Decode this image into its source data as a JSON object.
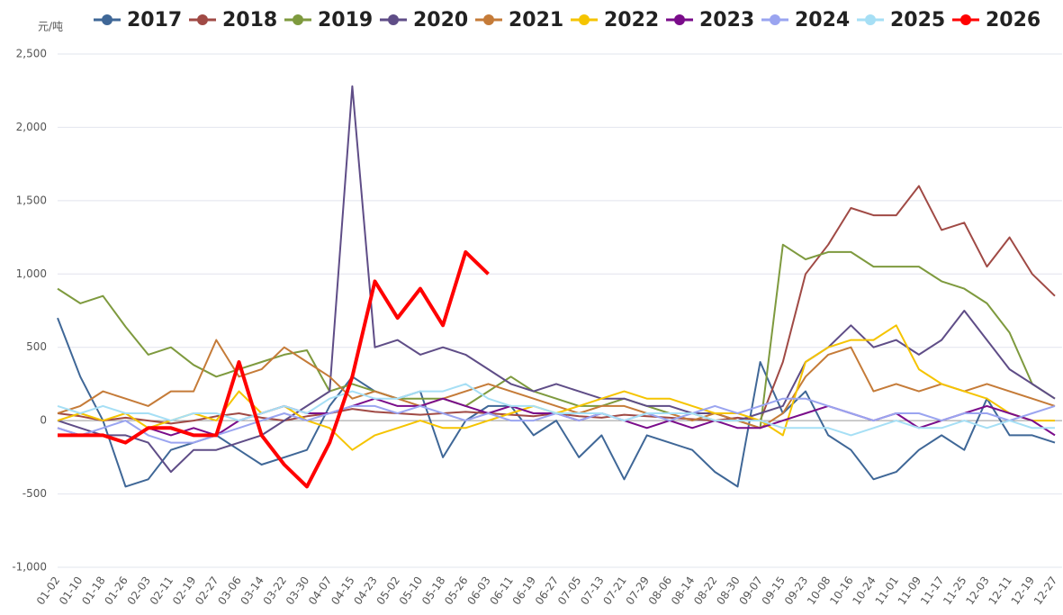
{
  "chart_data": {
    "type": "line",
    "y_unit": "元/吨",
    "categories": [
      "01-02",
      "01-10",
      "01-18",
      "01-26",
      "02-03",
      "02-11",
      "02-19",
      "02-27",
      "03-06",
      "03-14",
      "03-22",
      "03-30",
      "04-07",
      "04-15",
      "04-23",
      "05-02",
      "05-10",
      "05-18",
      "05-26",
      "06-03",
      "06-11",
      "06-19",
      "06-27",
      "07-05",
      "07-13",
      "07-21",
      "07-29",
      "08-06",
      "08-14",
      "08-22",
      "08-30",
      "09-07",
      "09-15",
      "09-23",
      "10-08",
      "10-16",
      "10-24",
      "11-01",
      "11-09",
      "11-17",
      "11-25",
      "12-03",
      "12-11",
      "12-19",
      "12-27"
    ],
    "ylim": [
      -1000,
      2500
    ],
    "yticks": [
      {
        "value": -1000,
        "label": "-1,000"
      },
      -500,
      0,
      500,
      {
        "value": 1000,
        "label": "1,000"
      },
      {
        "value": 1500,
        "label": "1,500"
      },
      {
        "value": 2000,
        "label": "2,000"
      },
      {
        "value": 2500,
        "label": "2,500"
      }
    ],
    "grid": true,
    "series": [
      {
        "name": "2017",
        "color": "#3f6797",
        "values": [
          700,
          300,
          0,
          -450,
          -400,
          -200,
          -150,
          -100,
          -200,
          -300,
          -250,
          -200,
          100,
          300,
          200,
          150,
          200,
          -250,
          0,
          100,
          100,
          -100,
          0,
          -250,
          -100,
          -400,
          -100,
          -150,
          -200,
          -350,
          -450,
          400,
          50,
          200,
          -100,
          -200,
          -400,
          -350,
          -200,
          -100,
          -200,
          150,
          -100,
          -100,
          -150
        ]
      },
      {
        "name": "2018",
        "color": "#a04a45",
        "values": [
          50,
          30,
          0,
          20,
          0,
          -20,
          0,
          30,
          50,
          20,
          0,
          30,
          50,
          80,
          60,
          50,
          40,
          50,
          60,
          50,
          40,
          30,
          50,
          30,
          20,
          40,
          30,
          20,
          10,
          0,
          20,
          0,
          400,
          1000,
          1200,
          1450,
          1400,
          1400,
          1600,
          1300,
          1350,
          1050,
          1250,
          1000,
          850
        ]
      },
      {
        "name": "2019",
        "color": "#7e9a3e",
        "values": [
          900,
          800,
          850,
          640,
          450,
          500,
          380,
          300,
          350,
          400,
          450,
          480,
          200,
          250,
          200,
          150,
          150,
          150,
          100,
          200,
          300,
          200,
          150,
          100,
          100,
          150,
          100,
          50,
          50,
          0,
          0,
          -50,
          1200,
          1100,
          1150,
          1150,
          1050,
          1050,
          1050,
          950,
          900,
          800,
          600,
          250,
          150
        ]
      },
      {
        "name": "2020",
        "color": "#5f4d87",
        "values": [
          0,
          -50,
          -100,
          -100,
          -150,
          -350,
          -200,
          -200,
          -150,
          -100,
          0,
          100,
          200,
          2280,
          500,
          550,
          450,
          500,
          450,
          350,
          250,
          200,
          250,
          200,
          150,
          150,
          100,
          100,
          50,
          50,
          0,
          50,
          100,
          400,
          500,
          650,
          500,
          550,
          450,
          550,
          750,
          550,
          350,
          250,
          150
        ]
      },
      {
        "name": "2021",
        "color": "#c57b38",
        "values": [
          50,
          100,
          200,
          150,
          100,
          200,
          200,
          550,
          300,
          350,
          500,
          400,
          300,
          150,
          200,
          150,
          100,
          150,
          200,
          250,
          200,
          150,
          100,
          50,
          100,
          100,
          50,
          50,
          0,
          50,
          0,
          -50,
          50,
          300,
          450,
          500,
          200,
          250,
          200,
          250,
          200,
          250,
          200,
          150,
          100
        ]
      },
      {
        "name": "2022",
        "color": "#f5c400",
        "values": [
          0,
          50,
          0,
          50,
          -50,
          0,
          50,
          0,
          200,
          50,
          100,
          0,
          -50,
          -200,
          -100,
          -50,
          0,
          -50,
          -50,
          0,
          50,
          100,
          50,
          100,
          150,
          200,
          150,
          150,
          100,
          50,
          50,
          0,
          -100,
          400,
          500,
          550,
          550,
          650,
          350,
          250,
          200,
          150,
          50,
          0,
          0
        ]
      },
      {
        "name": "2023",
        "color": "#7a0c8a",
        "values": [
          -50,
          -100,
          -100,
          -150,
          -50,
          -100,
          -50,
          -100,
          0,
          50,
          100,
          50,
          50,
          100,
          150,
          100,
          100,
          150,
          100,
          50,
          100,
          50,
          50,
          0,
          50,
          0,
          -50,
          0,
          -50,
          0,
          -50,
          -50,
          0,
          50,
          100,
          50,
          0,
          50,
          -50,
          0,
          50,
          100,
          50,
          0,
          -100
        ]
      },
      {
        "name": "2024",
        "color": "#9aa4f0",
        "values": [
          -50,
          -100,
          -50,
          0,
          -100,
          -150,
          -150,
          -100,
          -50,
          0,
          50,
          0,
          50,
          100,
          100,
          50,
          100,
          50,
          0,
          50,
          0,
          0,
          50,
          0,
          50,
          0,
          50,
          0,
          50,
          100,
          50,
          100,
          150,
          150,
          100,
          50,
          0,
          50,
          50,
          0,
          50,
          50,
          0,
          50,
          100
        ]
      },
      {
        "name": "2025",
        "color": "#a6dff5",
        "values": [
          100,
          50,
          100,
          50,
          50,
          0,
          50,
          50,
          0,
          50,
          100,
          50,
          150,
          200,
          150,
          150,
          200,
          200,
          250,
          150,
          100,
          100,
          50,
          50,
          50,
          0,
          50,
          50,
          50,
          0,
          0,
          0,
          -50,
          -50,
          -50,
          -100,
          -50,
          0,
          -50,
          -50,
          0,
          -50,
          0,
          -50,
          -50
        ]
      },
      {
        "name": "2026",
        "color": "#ff0000",
        "values": [
          -100,
          -100,
          -100,
          -150,
          -50,
          -50,
          -100,
          -100,
          400,
          -100,
          -300,
          -450,
          -150,
          300,
          950,
          700,
          900,
          650,
          1150,
          1000,
          null,
          null,
          null,
          null,
          null,
          null,
          null,
          null,
          null,
          null,
          null,
          null,
          null,
          null,
          null,
          null,
          null,
          null,
          null,
          null,
          null,
          null,
          null,
          null,
          null
        ]
      }
    ]
  }
}
